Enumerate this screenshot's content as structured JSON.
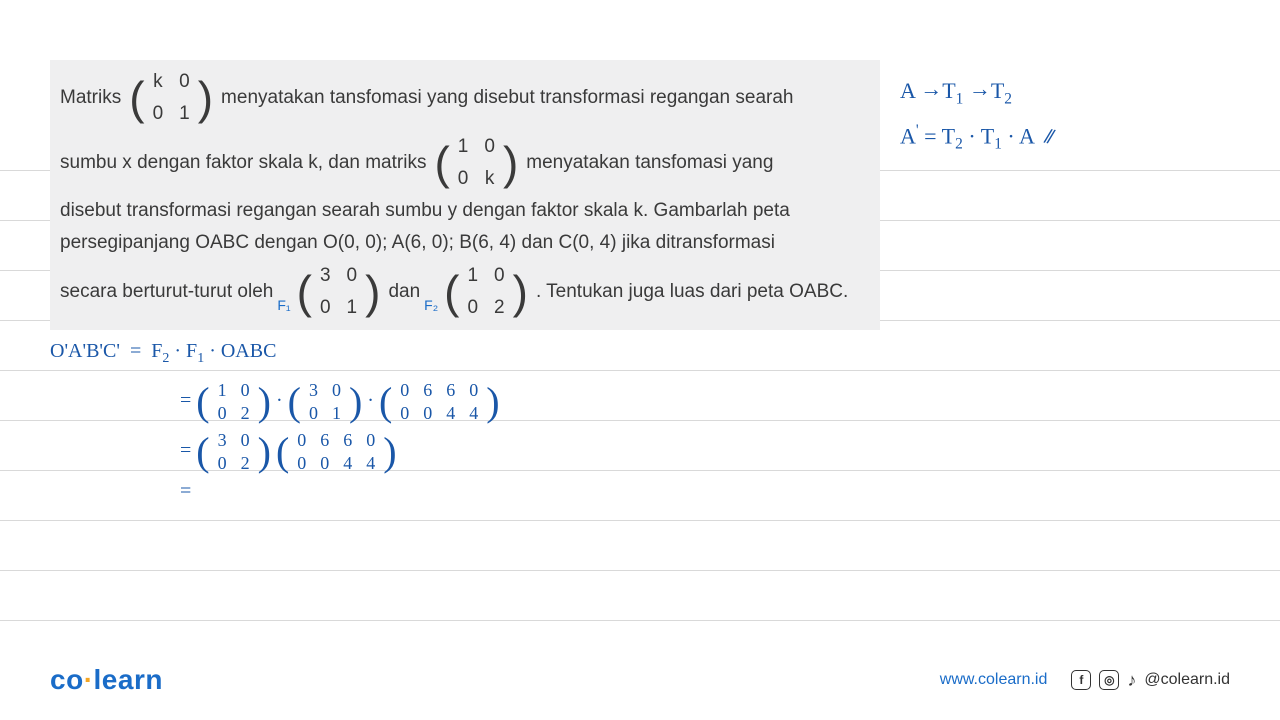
{
  "problem": {
    "l1a": "Matriks",
    "m1": [
      [
        "k",
        "0"
      ],
      [
        "0",
        "1"
      ]
    ],
    "l1b": "menyatakan tansfomasi yang disebut transformasi regangan searah",
    "l2a": "sumbu x dengan faktor skala k, dan matriks",
    "m2": [
      [
        "1",
        "0"
      ],
      [
        "0",
        "k"
      ]
    ],
    "l2b": "menyatakan tansfomasi yang",
    "l3": "disebut transformasi regangan searah sumbu y dengan faktor skala k.  Gambarlah peta",
    "l4": "persegipanjang OABC dengan O(0, 0); A(6, 0); B(6, 4) dan C(0, 4) jika ditransformasi",
    "l5a": "secara berturut-turut oleh",
    "m3": [
      [
        "3",
        "0"
      ],
      [
        "0",
        "1"
      ]
    ],
    "l5b": "dan",
    "m4": [
      [
        "1",
        "0"
      ],
      [
        "0",
        "2"
      ]
    ],
    "l5c": ". Tentukan juga luas dari peta OABC.",
    "f1": "F₁",
    "f2": "F₂"
  },
  "hand": {
    "r1": "A →T₁ →T₂",
    "r2": "A' = T₂ · T₁ · A",
    "r2mark": "⫽",
    "w1": "O'A'B'C'  =   F₂ · F₁ · OABC",
    "eq": "=",
    "m_f2": [
      [
        "1",
        "0"
      ],
      [
        "0",
        "2"
      ]
    ],
    "m_f1": [
      [
        "3",
        "0"
      ],
      [
        "0",
        "1"
      ]
    ],
    "m_oabc": [
      [
        "0",
        "6",
        "6",
        "0"
      ],
      [
        "0",
        "0",
        "4",
        "4"
      ]
    ],
    "m_p1": [
      [
        "3",
        "0"
      ],
      [
        "0",
        "2"
      ]
    ],
    "m_p2": [
      [
        "0",
        "6",
        "6",
        "0"
      ],
      [
        "0",
        "0",
        "4",
        "4"
      ]
    ]
  },
  "footer": {
    "logo_a": "co",
    "logo_b": "learn",
    "url": "www.colearn.id",
    "handle": "@colearn.id"
  },
  "style": {
    "hand_color": "#1a57a8",
    "problem_bg": "#efeff0",
    "rule_color": "#d9d9d9",
    "link_color": "#1a6cc8",
    "accent": "#f5a623"
  },
  "rules_y": [
    170,
    220,
    270,
    320,
    370,
    420,
    470,
    520,
    570,
    620
  ]
}
